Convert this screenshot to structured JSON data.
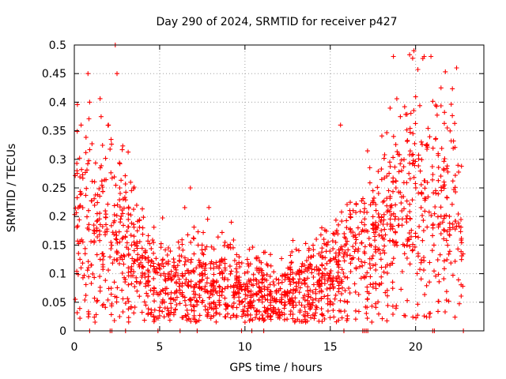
{
  "chart_data": {
    "type": "scatter",
    "title": "Day 290 of 2024, SRMTID for receiver p427",
    "xlabel": "GPS time / hours",
    "ylabel": "SRMTID / TECUs",
    "xlim": [
      0,
      24
    ],
    "ylim": [
      0,
      0.5
    ],
    "xticks": [
      0,
      5,
      10,
      15,
      20
    ],
    "xtick_labels": [
      "0",
      "5",
      "10",
      "15",
      "20"
    ],
    "yticks": [
      0,
      0.05,
      0.1,
      0.15,
      0.2,
      0.25,
      0.3,
      0.35,
      0.4,
      0.45,
      0.5
    ],
    "ytick_labels": [
      "0",
      "0.05",
      "0.1",
      "0.15",
      "0.2",
      "0.25",
      "0.3",
      "0.35",
      "0.4",
      "0.45",
      "0.5"
    ],
    "grid": true,
    "marker": "+",
    "color": "#ff0000",
    "series": [
      {
        "name": "SRMTID",
        "note": "approx. 2000 points; trend envelope (hours -> typical TECU)",
        "trend": [
          [
            0,
            0.21
          ],
          [
            0.5,
            0.2
          ],
          [
            1,
            0.19
          ],
          [
            2,
            0.17
          ],
          [
            3,
            0.14
          ],
          [
            4,
            0.11
          ],
          [
            5,
            0.08
          ],
          [
            6,
            0.085
          ],
          [
            7,
            0.09
          ],
          [
            8,
            0.08
          ],
          [
            9,
            0.085
          ],
          [
            10,
            0.07
          ],
          [
            11,
            0.065
          ],
          [
            12,
            0.06
          ],
          [
            13,
            0.07
          ],
          [
            14,
            0.085
          ],
          [
            15,
            0.095
          ],
          [
            16,
            0.12
          ],
          [
            17,
            0.14
          ],
          [
            18,
            0.15
          ],
          [
            19,
            0.2
          ],
          [
            20,
            0.24
          ],
          [
            21,
            0.22
          ],
          [
            22,
            0.25
          ],
          [
            22.8,
            0.15
          ]
        ],
        "outliers": [
          [
            0.4,
            0.36
          ],
          [
            0.8,
            0.45
          ],
          [
            0.9,
            0.4
          ],
          [
            2.0,
            0.36
          ],
          [
            2.4,
            0.5
          ],
          [
            2.5,
            0.45
          ],
          [
            3.3,
            0.26
          ],
          [
            6.8,
            0.25
          ],
          [
            9.2,
            0.19
          ],
          [
            15.6,
            0.36
          ],
          [
            18.7,
            0.48
          ],
          [
            19.9,
            0.49
          ],
          [
            20.5,
            0.48
          ],
          [
            20.9,
            0.48
          ],
          [
            22.4,
            0.46
          ]
        ],
        "zero_points": [
          0.9,
          2.1,
          2.2,
          3.0,
          4.9,
          6.2,
          7.2,
          9.8,
          10.4,
          11.1,
          15.8,
          16.9,
          17.0,
          17.1,
          17.2,
          21.0,
          21.1,
          22.8
        ]
      }
    ]
  }
}
